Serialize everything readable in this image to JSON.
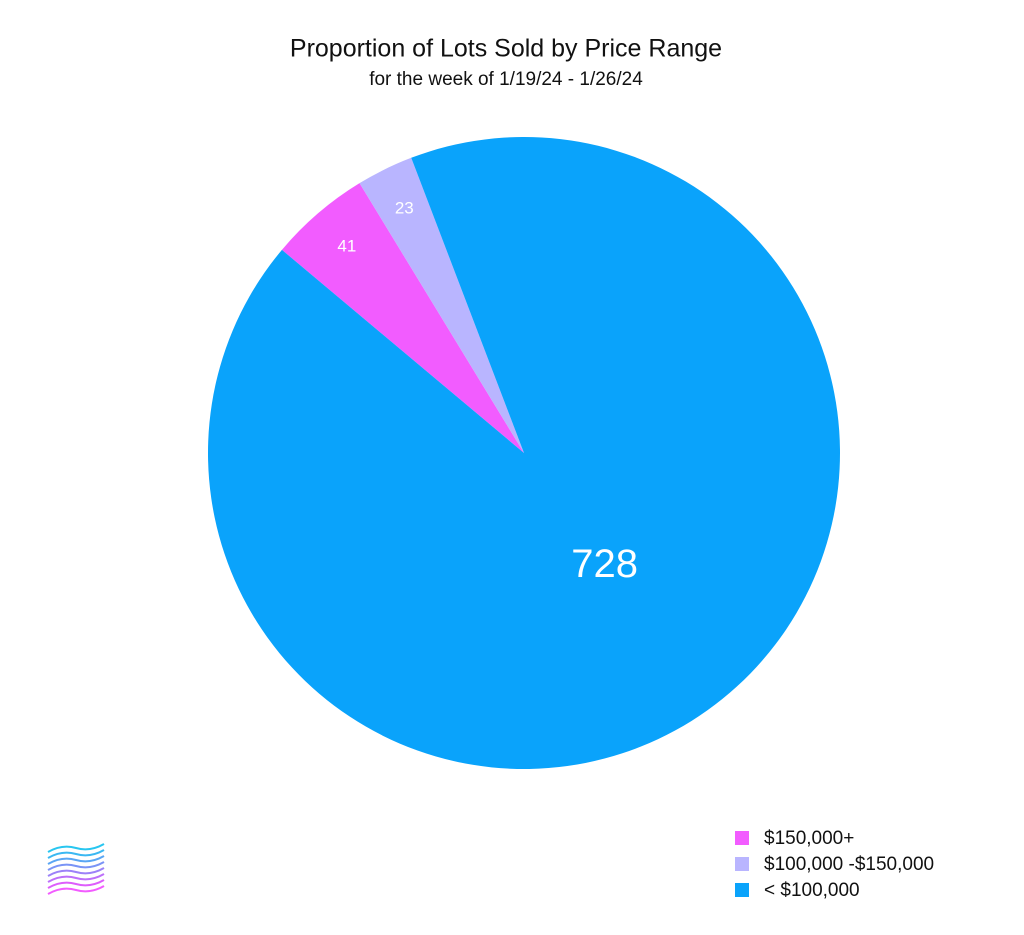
{
  "chart_data": {
    "type": "pie",
    "title": "Proportion of Lots Sold by Price Range",
    "subtitle": "for the week of 1/19/24 - 1/26/24",
    "categories": [
      "$150,000+",
      "$100,000 -$150,000",
      "< $100,000"
    ],
    "values": [
      41,
      23,
      728
    ],
    "colors": [
      "#f25cff",
      "#b9b5ff",
      "#0aa3fb"
    ],
    "legend": "bottom-right"
  }
}
